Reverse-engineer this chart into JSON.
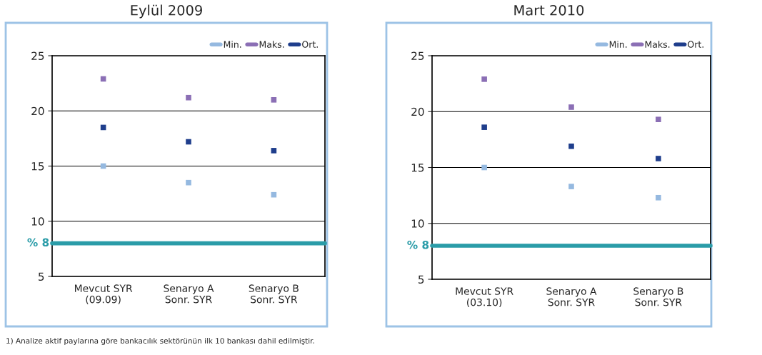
{
  "chart_data": [
    {
      "type": "scatter",
      "title": "Eylül 2009",
      "categories": [
        "Mevcut SYR\n(09.09)",
        "Senaryo A\nSonr. SYR",
        "Senaryo B\nSonr. SYR"
      ],
      "series": [
        {
          "name": "Min.",
          "color": "#95b9e0",
          "values": [
            15.0,
            13.5,
            12.4
          ]
        },
        {
          "name": "Maks.",
          "color": "#8b6fb5",
          "values": [
            22.9,
            21.2,
            21.0
          ]
        },
        {
          "name": "Ort.",
          "color": "#1f3e8c",
          "values": [
            18.5,
            17.2,
            16.4
          ]
        }
      ],
      "ylim": [
        5,
        25
      ],
      "yticks": [
        5,
        10,
        15,
        20,
        25
      ],
      "grid": "y",
      "legend": "top right",
      "ref_lines": [
        {
          "axis": "y",
          "value": 8,
          "label": "% 8",
          "color": "#2a9ca8"
        }
      ],
      "annotations": [
        "1) Analize aktif paylarına göre bankacılık sektörünün ilk 10 bankası dahil edilmiştir."
      ]
    },
    {
      "type": "scatter",
      "title": "Mart 2010",
      "categories": [
        "Mevcut SYR\n(03.10)",
        "Senaryo A\nSonr. SYR",
        "Senaryo B\nSonr. SYR"
      ],
      "series": [
        {
          "name": "Min.",
          "color": "#95b9e0",
          "values": [
            15.0,
            13.3,
            12.3
          ]
        },
        {
          "name": "Maks.",
          "color": "#8b6fb5",
          "values": [
            22.9,
            20.4,
            19.3
          ]
        },
        {
          "name": "Ort.",
          "color": "#1f3e8c",
          "values": [
            18.6,
            16.9,
            15.8
          ]
        }
      ],
      "ylim": [
        5,
        25
      ],
      "yticks": [
        5,
        10,
        15,
        20,
        25
      ],
      "grid": "y",
      "legend": "top right",
      "ref_lines": [
        {
          "axis": "y",
          "value": 8,
          "label": "% 8",
          "color": "#2a9ca8"
        }
      ]
    }
  ]
}
